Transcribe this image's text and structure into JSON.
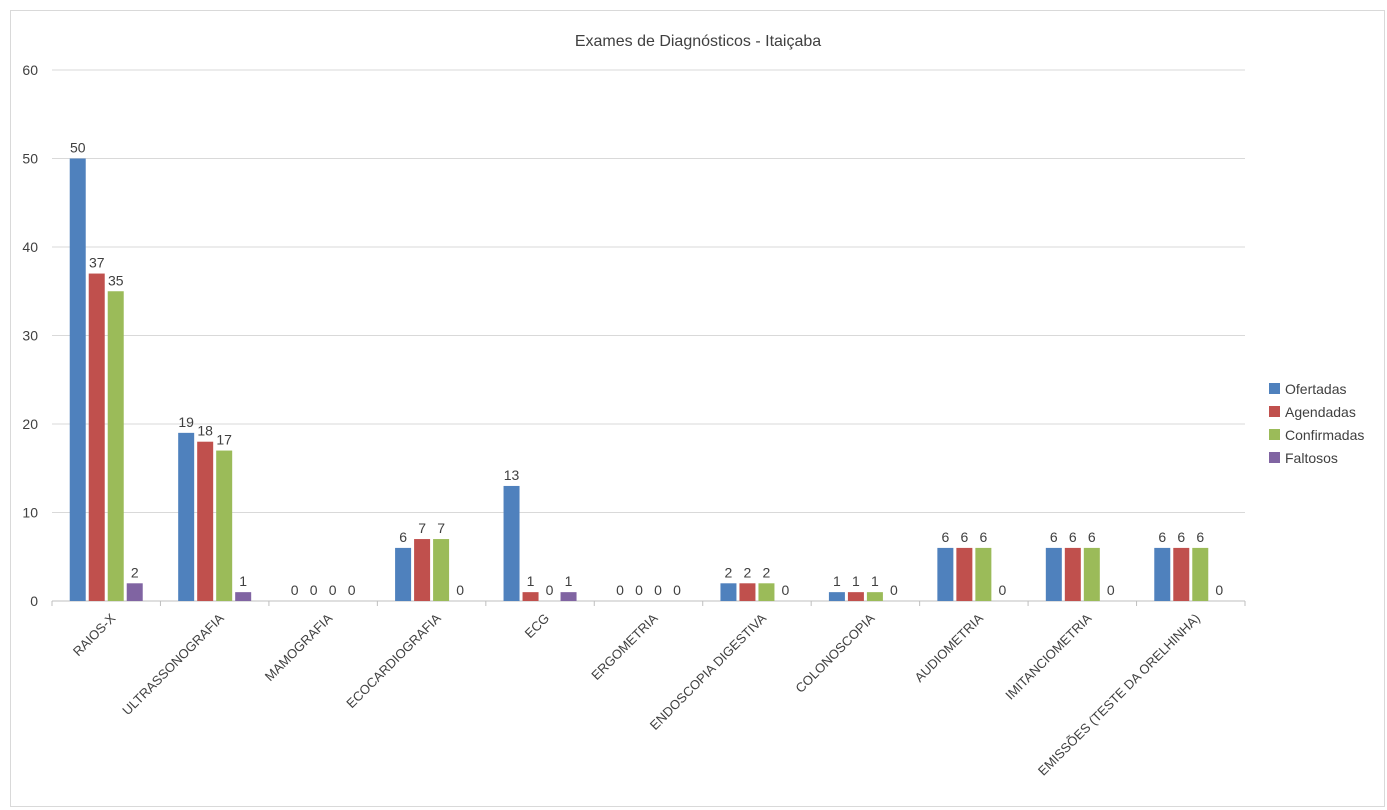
{
  "chart_data": {
    "type": "bar",
    "title": "Exames de Diagnósticos  - Itaiçaba",
    "xlabel": "",
    "ylabel": "",
    "ylim": [
      0,
      60
    ],
    "yticks": [
      0,
      10,
      20,
      30,
      40,
      50,
      60
    ],
    "grid": true,
    "legend_position": "right",
    "categories": [
      "RAIOS-X",
      "ULTRASSONOGRAFIA",
      "MAMOGRAFIA",
      "ECOCARDIOGRAFIA",
      "ECG",
      "ERGOMETRIA",
      "ENDOSCOPIA DIGESTIVA",
      "COLONOSCOPIA",
      "AUDIOMETRIA",
      "IMITANCIOMETRIA",
      "EMISSÕES (TESTE DA ORELHINHA)"
    ],
    "series": [
      {
        "name": "Ofertadas",
        "color": "#4f81bd",
        "values": [
          50,
          19,
          0,
          6,
          13,
          0,
          2,
          1,
          6,
          6,
          6
        ]
      },
      {
        "name": "Agendadas",
        "color": "#c0504d",
        "values": [
          37,
          18,
          0,
          7,
          1,
          0,
          2,
          1,
          6,
          6,
          6
        ]
      },
      {
        "name": "Confirmadas",
        "color": "#9bbb59",
        "values": [
          35,
          17,
          0,
          7,
          0,
          0,
          2,
          1,
          6,
          6,
          6
        ]
      },
      {
        "name": "Faltosos",
        "color": "#8064a2",
        "values": [
          2,
          1,
          0,
          0,
          1,
          0,
          0,
          0,
          0,
          0,
          0
        ]
      }
    ]
  }
}
